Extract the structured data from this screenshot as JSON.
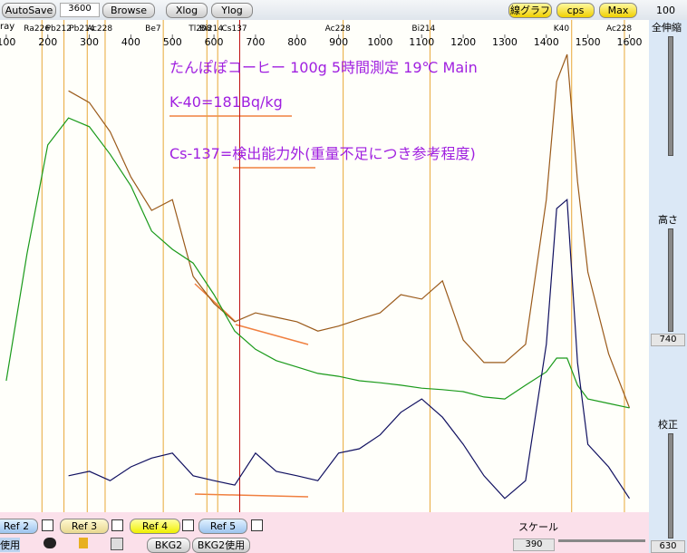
{
  "toolbar": {
    "autosave": "AutoSave",
    "time": "3600",
    "browse": "Browse",
    "xlog": "Xlog",
    "ylog": "Ylog",
    "line_graph": "線グラフ",
    "cps": "cps",
    "max": "Max"
  },
  "side_panel": {
    "top_value": "100",
    "zoom_label": "全伸縮",
    "height_label": "高さ",
    "height_value": "740",
    "calib_label": "校正",
    "calib_value": "630"
  },
  "bottom_bar": {
    "refs": [
      "Ref 2",
      "Ref 3",
      "Ref 4",
      "Ref 5"
    ],
    "use": "使用",
    "bkg2": "BKG2",
    "bkg2_use": "BKG2使用",
    "scale_label": "スケール",
    "scale_value": "390"
  },
  "chart_data": {
    "type": "line",
    "annotations": [
      "たんぽぽコーヒー 100g  5時間測定  19℃  Main",
      "K-40=181Bq/kg",
      "Cs-137=検出能力外(重量不足につき参考程度)"
    ],
    "x_edge_label": "ray",
    "xlim": [
      85,
      1647
    ],
    "xticks": [
      100,
      200,
      300,
      400,
      500,
      600,
      700,
      800,
      900,
      1000,
      1100,
      1200,
      1300,
      1400,
      1500,
      1600
    ],
    "ylim": [
      0,
      100
    ],
    "x": [
      100,
      150,
      200,
      250,
      300,
      350,
      400,
      450,
      500,
      550,
      600,
      650,
      700,
      750,
      800,
      850,
      900,
      950,
      1000,
      1050,
      1100,
      1150,
      1200,
      1250,
      1300,
      1350,
      1400,
      1425,
      1450,
      1475,
      1500,
      1550,
      1600
    ],
    "series": [
      {
        "color": "#9a5a1a",
        "values": [
          null,
          null,
          null,
          85.6,
          83.2,
          77.3,
          68.1,
          61.3,
          63.5,
          47.9,
          42.4,
          38.7,
          40.5,
          39.6,
          38.7,
          36.8,
          37.8,
          39.2,
          40.5,
          44.2,
          43.3,
          47.0,
          35.0,
          30.4,
          30.4,
          34.1,
          63.5,
          87.5,
          93.0,
          67.2,
          48.8,
          32.2,
          21.2
        ]
      },
      {
        "color": "#1a9a1a",
        "values": [
          26.7,
          52.5,
          74.6,
          80.1,
          78.3,
          72.7,
          66.3,
          57.1,
          53.4,
          50.6,
          44.2,
          36.8,
          33.1,
          30.8,
          29.5,
          28.2,
          27.6,
          26.7,
          26.3,
          25.8,
          25.2,
          24.9,
          24.5,
          23.4,
          23.0,
          25.8,
          28.5,
          31.3,
          31.3,
          25.8,
          23.0,
          22.1,
          21.2
        ]
      },
      {
        "color": "#101060",
        "values": [
          null,
          null,
          null,
          7.4,
          8.3,
          6.4,
          9.2,
          11.0,
          12.0,
          7.4,
          6.4,
          5.5,
          12.0,
          8.3,
          7.4,
          6.4,
          12.0,
          12.9,
          15.7,
          20.3,
          23.0,
          19.3,
          13.8,
          7.4,
          2.8,
          6.4,
          34.1,
          61.7,
          63.5,
          30.4,
          13.8,
          9.2,
          2.8
        ]
      }
    ],
    "peak_color": "#e8a838",
    "peaks": [
      {
        "label": "Ra226",
        "energy": 186
      },
      {
        "label": "Pb212",
        "energy": 239
      },
      {
        "label": "Pb214",
        "energy": 295
      },
      {
        "label": "Ac228",
        "energy": 338
      },
      {
        "label": "Be7",
        "energy": 478
      },
      {
        "label": "Tl208",
        "energy": 583
      },
      {
        "label": "Bi214",
        "energy": 609
      },
      {
        "label": "Cs137",
        "energy": 662,
        "color": "#c01010"
      },
      {
        "label": "Ac228",
        "energy": 911
      },
      {
        "label": "Bi214",
        "energy": 1120
      },
      {
        "label": "K40",
        "energy": 1461
      },
      {
        "label": "Ac228",
        "energy": 1588
      }
    ]
  }
}
